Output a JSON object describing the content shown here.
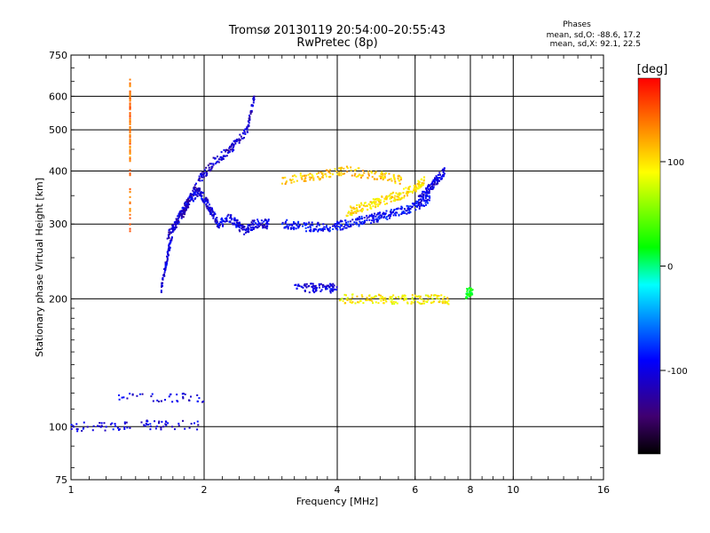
{
  "chart_data": {
    "type": "scatter",
    "title": "Tromsø 20130119 20:54:00–20:55:43",
    "subtitle": "RwPretec (8p)",
    "stats": {
      "heading": "Phases",
      "line1": "mean, sd,O: -88.6, 17.2",
      "line2": "mean, sd,X:  92.1, 22.5"
    },
    "xlabel": "Frequency [MHz]",
    "ylabel": "Stationary phase Virtual Height [km]",
    "xscale": "log",
    "yscale": "log",
    "xlim": [
      1,
      16
    ],
    "ylim": [
      75,
      750
    ],
    "xticks": [
      1,
      2,
      4,
      6,
      8,
      10,
      16
    ],
    "yticks": [
      75,
      100,
      200,
      300,
      400,
      500,
      600,
      750
    ],
    "grid": true,
    "colorbar": {
      "label": "[deg]",
      "range": [
        -180,
        180
      ],
      "ticks": [
        100,
        0,
        -100
      ],
      "colors": [
        "#ff0000",
        "#ffff00",
        "#00ff00",
        "#00ffff",
        "#0000ff",
        "#000000"
      ]
    },
    "traces": [
      {
        "x": [
          1.0,
          1.35
        ],
        "y": [
          100,
          100
        ],
        "phase": -100
      },
      {
        "x": [
          1.35,
          1.95
        ],
        "y": [
          101,
          101
        ],
        "phase": -100
      },
      {
        "x": [
          1.28,
          2.0
        ],
        "y": [
          117,
          117
        ],
        "phase": -100
      },
      {
        "x": [
          1.6,
          1.65,
          1.7,
          1.78,
          1.85,
          1.95,
          2.05,
          2.15,
          2.3,
          2.45,
          2.6,
          2.8
        ],
        "y": [
          210,
          250,
          290,
          320,
          340,
          360,
          330,
          300,
          310,
          290,
          300,
          300
        ],
        "phase": -100
      },
      {
        "x": [
          1.65,
          1.8,
          1.95,
          2.1,
          2.3,
          2.5,
          2.6
        ],
        "y": [
          280,
          320,
          380,
          420,
          450,
          500,
          600
        ],
        "phase": -110
      },
      {
        "x": [
          3.0,
          3.4,
          3.8,
          4.2,
          4.6,
          5.0,
          5.5,
          6.0,
          6.5
        ],
        "y": [
          300,
          296,
          294,
          300,
          306,
          312,
          320,
          330,
          345
        ],
        "phase": -90
      },
      {
        "x": [
          4.2,
          4.6,
          5.0,
          5.5,
          6.0,
          6.3
        ],
        "y": [
          320,
          330,
          340,
          350,
          365,
          380
        ],
        "phase": 100
      },
      {
        "x": [
          6.1,
          6.4,
          6.7,
          7.0
        ],
        "y": [
          340,
          360,
          380,
          400
        ],
        "phase": -100
      },
      {
        "x": [
          3.2,
          3.6,
          4.0
        ],
        "y": [
          212,
          212,
          212
        ],
        "phase": -100
      },
      {
        "x": [
          4.0,
          4.8,
          5.6,
          6.4,
          7.2
        ],
        "y": [
          200,
          200,
          199,
          200,
          199
        ],
        "phase": 95
      },
      {
        "x": [
          7.8,
          8.1
        ],
        "y": [
          205,
          210
        ],
        "phase": 20
      },
      {
        "x": [
          1.36,
          1.36,
          1.36,
          1.36
        ],
        "y": [
          430,
          550,
          650,
          290
        ],
        "phase": 140
      },
      {
        "x": [
          3.0,
          3.6,
          4.2,
          5.0,
          5.6
        ],
        "y": [
          380,
          390,
          400,
          390,
          380
        ],
        "phase": 110
      }
    ]
  }
}
